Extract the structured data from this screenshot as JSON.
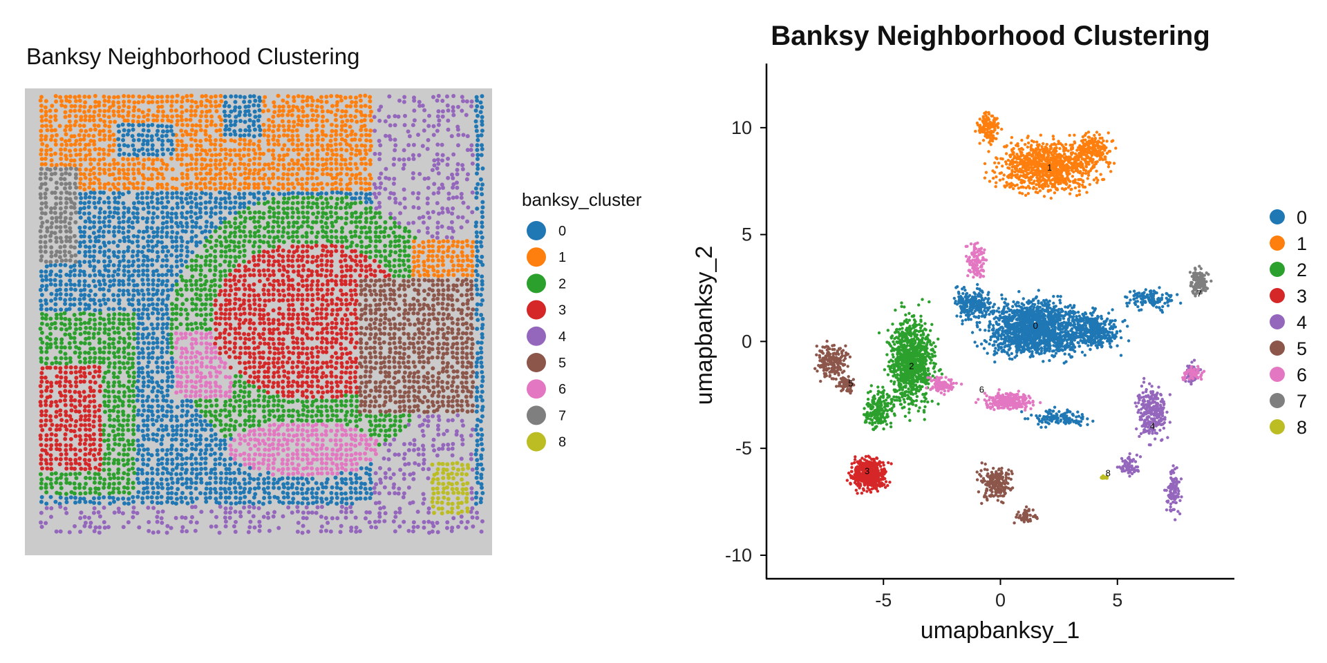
{
  "colors": [
    "#1f77b4",
    "#ff7f0e",
    "#2ca02c",
    "#d62728",
    "#9467bd",
    "#8c564b",
    "#e377c2",
    "#7f7f7f",
    "#bcbd22"
  ],
  "chart_data": [
    {
      "type": "scatter",
      "title": "Banksy Neighborhood Clustering",
      "legend_title": "banksy_cluster",
      "legend_position": "right",
      "categories": [
        "0",
        "1",
        "2",
        "3",
        "4",
        "5",
        "6",
        "7",
        "8"
      ],
      "background": "tissue image (gray)"
    },
    {
      "type": "scatter",
      "title": "Banksy Neighborhood Clustering",
      "xlabel": "umapbanksy_1",
      "ylabel": "umapbanksy_2",
      "xlim": [
        -10,
        10
      ],
      "ylim": [
        -11.1,
        13
      ],
      "xticks": [
        -5,
        0,
        5
      ],
      "xtick_labels": [
        "-5",
        "0",
        "5"
      ],
      "yticks": [
        -10,
        -5,
        0,
        5,
        10
      ],
      "ytick_labels": [
        "-10",
        "-5",
        "0",
        "5",
        "10"
      ],
      "legend_position": "right",
      "categories": [
        "0",
        "1",
        "2",
        "3",
        "4",
        "5",
        "6",
        "7",
        "8"
      ],
      "cluster_label_positions": [
        {
          "label": "0",
          "x": 1.5,
          "y": 0.6
        },
        {
          "label": "1",
          "x": 2.1,
          "y": 8.0
        },
        {
          "label": "2",
          "x": -3.8,
          "y": -1.3
        },
        {
          "label": "3",
          "x": -5.7,
          "y": -6.2
        },
        {
          "label": "4",
          "x": 6.5,
          "y": -4.1
        },
        {
          "label": "5",
          "x": -6.4,
          "y": -2.1
        },
        {
          "label": "6",
          "x": -0.8,
          "y": -2.4
        },
        {
          "label": "7",
          "x": 8.5,
          "y": 2.1
        },
        {
          "label": "8",
          "x": 4.6,
          "y": -6.3
        }
      ]
    }
  ]
}
